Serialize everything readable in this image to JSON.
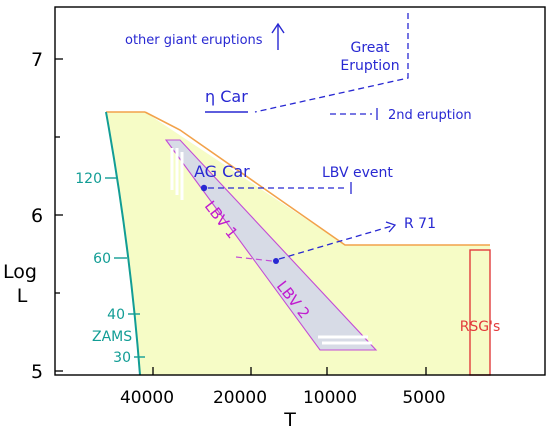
{
  "diagram": {
    "y_ticks": [
      "7",
      "6",
      "5"
    ],
    "y_label_top": "Log",
    "y_label_bottom": "L",
    "x_ticks": [
      "40000",
      "20000",
      "10000",
      "5000"
    ],
    "x_label": "T",
    "mass_labels": [
      "120",
      "60",
      "40",
      "30"
    ],
    "zams_label": "ZAMS",
    "annotations": {
      "other_giant": "other giant eruptions",
      "great_1": "Great",
      "great_2": "Eruption",
      "eta_car": "η Car",
      "second_eruption": "2nd  eruption",
      "ag_car": "AG Car",
      "lbv_event": "LBV event",
      "r71": "R 71",
      "lbv1": "LBV 1",
      "lbv2": "LBV 2",
      "rsg": "RSG's"
    },
    "colors": {
      "region_fill": "#f6fcc6",
      "zams_line": "#129d95",
      "orange_edge": "#f2a24a",
      "lbv_strip_fill": "#d7dbe6",
      "lbv_strip_edge": "#c34cd6",
      "magenta_text": "#c01ccf",
      "blue": "#2828d2",
      "rsg_red": "#e23c3c"
    }
  }
}
